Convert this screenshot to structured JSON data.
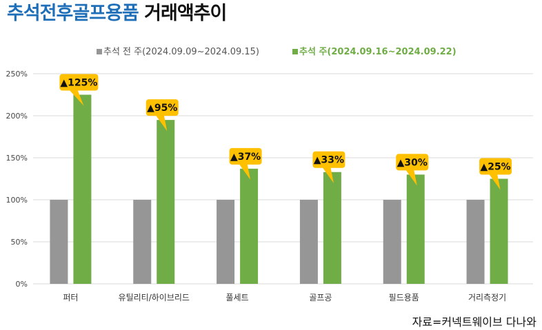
{
  "title": {
    "highlight": "추석전후골프용품",
    "rest": "거래액추이"
  },
  "source": "자료=커넥트웨이브 다나와",
  "colors": {
    "before": "#969696",
    "after": "#70ad47",
    "callout": "#ffc000",
    "grid": "#d9d9d9",
    "title_highlight": "#1f6fb8"
  },
  "chart_data": {
    "type": "bar",
    "categories": [
      "퍼터",
      "유틸리티/하이브리드",
      "풀세트",
      "골프공",
      "필드용품",
      "거리측정기"
    ],
    "series": [
      {
        "name": "추석 전 주(2024.09.09~2024.09.15)",
        "values": [
          100,
          100,
          100,
          100,
          100,
          100
        ]
      },
      {
        "name": "추석 주(2024.09.16~2024.09.22)",
        "values": [
          225,
          195,
          137,
          133,
          130,
          125
        ]
      }
    ],
    "annotations": [
      "▲125%",
      "▲95%",
      "▲37%",
      "▲33%",
      "▲30%",
      "▲25%"
    ],
    "ylim": [
      0,
      250
    ],
    "yticks": [
      0,
      50,
      100,
      150,
      200,
      250
    ],
    "ytick_labels": [
      "0%",
      "50%",
      "100%",
      "150%",
      "200%",
      "250%"
    ],
    "grid": true,
    "legend_position": "top-center"
  }
}
